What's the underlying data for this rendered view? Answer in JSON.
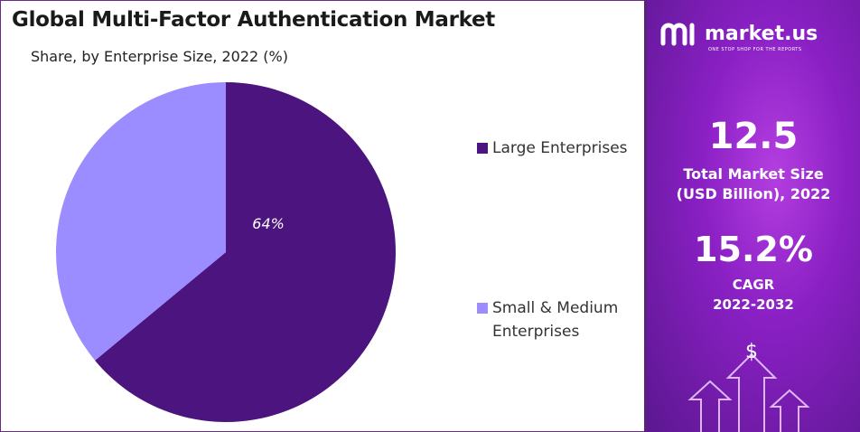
{
  "chart_data": {
    "type": "pie",
    "title": "Global Multi-Factor Authentication Market",
    "subtitle": "Share, by Enterprise Size, 2022 (%)",
    "series": [
      {
        "name": "Large Enterprises",
        "value": 64,
        "label": "64%",
        "color": "#4b147e"
      },
      {
        "name": "Small & Medium Enterprises",
        "value": 36,
        "label": "",
        "color": "#9b8cff"
      }
    ],
    "legend_position": "right"
  },
  "legend": {
    "large": "Large Enterprises",
    "small_line1": "Small & Medium",
    "small_line2": "Enterprises"
  },
  "brand": {
    "name": "market.us",
    "tagline": "ONE STOP SHOP FOR THE REPORTS",
    "panel_color": "#8a20c4"
  },
  "stats": {
    "market_size_value": "12.5",
    "market_size_label1": "Total Market Size",
    "market_size_label2": "(USD Billion), 2022",
    "cagr_value": "15.2%",
    "cagr_label1": "CAGR",
    "cagr_label2": "2022-2032"
  },
  "icons": {
    "currency": "$"
  }
}
